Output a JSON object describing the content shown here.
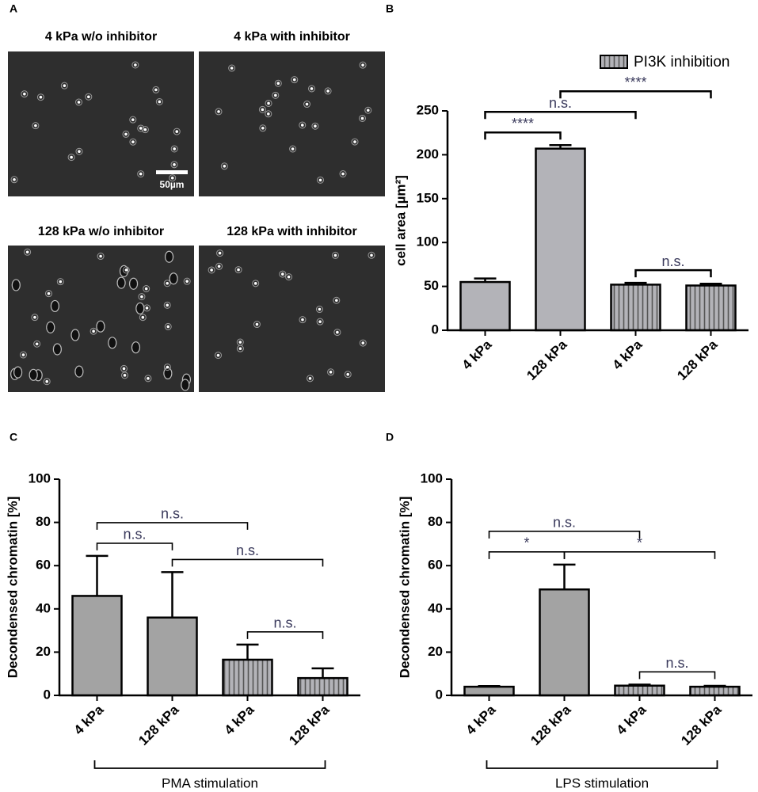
{
  "panels": [
    "A",
    "B",
    "C",
    "D"
  ],
  "images": [
    {
      "title": "4 kPa w/o inhibitor"
    },
    {
      "title": "4 kPa with inhibitor"
    },
    {
      "title": "128 kPa w/o inhibitor"
    },
    {
      "title": "128 kPa with inhibitor"
    }
  ],
  "scale_bar": "50µm",
  "chart_data": [
    {
      "type": "bar",
      "ylabel": "cell area [µm²]",
      "categories": [
        "4 kPa",
        "128 kPa",
        "4 kPa",
        "128 kPa"
      ],
      "values": [
        55,
        207,
        52,
        51
      ],
      "errors": [
        4,
        4,
        2,
        2
      ],
      "hatched": [
        false,
        false,
        true,
        true
      ],
      "color": "#b3b3b8",
      "legend": "PI3K inhibition",
      "ylim": [
        0,
        250
      ],
      "yticks": [
        0,
        50,
        100,
        150,
        200,
        250
      ],
      "brackets": [
        {
          "from": 0,
          "to": 2,
          "label": "n.s."
        },
        {
          "from": 0,
          "to": 1,
          "label": "****"
        },
        {
          "from": 1,
          "to": 3,
          "label": "****"
        },
        {
          "from": 2,
          "to": 3,
          "label": "n.s."
        }
      ]
    },
    {
      "type": "bar",
      "ylabel": "Decondensed chromatin [%]",
      "categories": [
        "4 kPa",
        "128 kPa",
        "4 kPa",
        "128 kPa"
      ],
      "values": [
        46,
        36,
        16.5,
        8
      ],
      "errors": [
        18.5,
        21,
        7,
        4.5
      ],
      "hatched": [
        false,
        false,
        true,
        true
      ],
      "color": "#a3a3a3",
      "group_label": "PMA stimulation",
      "ylim": [
        0,
        100
      ],
      "yticks": [
        0,
        20,
        40,
        60,
        80,
        100
      ],
      "brackets": [
        {
          "from": 0,
          "to": 1,
          "label": "n.s."
        },
        {
          "from": 1,
          "to": 3,
          "label": "n.s."
        },
        {
          "from": 0,
          "to": 2,
          "label": "n.s."
        },
        {
          "from": 2,
          "to": 3,
          "label": "n.s."
        }
      ]
    },
    {
      "type": "bar",
      "ylabel": "Decondensed chromatin [%]",
      "categories": [
        "4 kPa",
        "128 kPa",
        "4 kPa",
        "128 kPa"
      ],
      "values": [
        4,
        49,
        4.5,
        4
      ],
      "errors": [
        0.3,
        11.5,
        0.5,
        0.4
      ],
      "hatched": [
        false,
        false,
        true,
        true
      ],
      "color": "#a3a3a3",
      "group_label": "LPS stimulation",
      "ylim": [
        0,
        100
      ],
      "yticks": [
        0,
        20,
        40,
        60,
        80,
        100
      ],
      "brackets": [
        {
          "from": 0,
          "to": 1,
          "label": "*"
        },
        {
          "from": 1,
          "to": 3,
          "label": "*"
        },
        {
          "from": 0,
          "to": 2,
          "label": "n.s."
        },
        {
          "from": 2,
          "to": 3,
          "label": "n.s."
        }
      ]
    }
  ]
}
